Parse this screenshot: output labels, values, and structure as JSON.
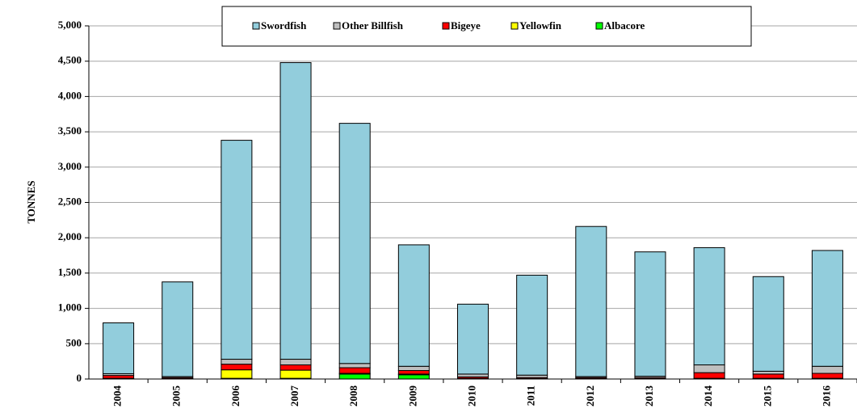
{
  "chart_data": {
    "type": "stacked_bar",
    "y_label": "TONNES",
    "categories": [
      "2004",
      "2005",
      "2006",
      "2007",
      "2008",
      "2009",
      "2010",
      "2011",
      "2012",
      "2013",
      "2014",
      "2015",
      "2016"
    ],
    "series": [
      {
        "name": "Swordfish",
        "color": "#92cddc",
        "values": [
          720,
          1340,
          3100,
          4200,
          3400,
          1720,
          990,
          1415,
          2125,
          1760,
          1660,
          1340,
          1640
        ]
      },
      {
        "name": "Other Billfish",
        "color": "#bfbfbf",
        "values": [
          25,
          15,
          70,
          80,
          60,
          60,
          40,
          35,
          15,
          20,
          110,
          40,
          100
        ]
      },
      {
        "name": "Bigeye",
        "color": "#ff0000",
        "values": [
          40,
          15,
          80,
          75,
          80,
          50,
          20,
          15,
          15,
          15,
          80,
          60,
          70
        ]
      },
      {
        "name": "Yellowfin",
        "color": "#ffff00",
        "values": [
          5,
          3,
          120,
          115,
          10,
          10,
          5,
          2,
          3,
          3,
          5,
          5,
          5
        ]
      },
      {
        "name": "Albacore",
        "color": "#00ff00",
        "values": [
          5,
          2,
          10,
          10,
          70,
          60,
          5,
          3,
          2,
          2,
          5,
          5,
          5
        ]
      }
    ],
    "ylim": [
      0,
      5000
    ],
    "yticks": [
      0,
      500,
      {
        "value": 1000,
        "label": "1,000"
      },
      {
        "value": 1500,
        "label": "1,500"
      },
      {
        "value": 2000,
        "label": "2,000"
      },
      {
        "value": 2500,
        "label": "2,500"
      },
      {
        "value": 3000,
        "label": "3,000"
      },
      {
        "value": 3500,
        "label": "3,500"
      },
      {
        "value": 4000,
        "label": "4,000"
      },
      {
        "value": 4500,
        "label": "4,500"
      },
      {
        "value": 5000,
        "label": "5,000"
      }
    ],
    "grid": true,
    "legend": "top"
  }
}
